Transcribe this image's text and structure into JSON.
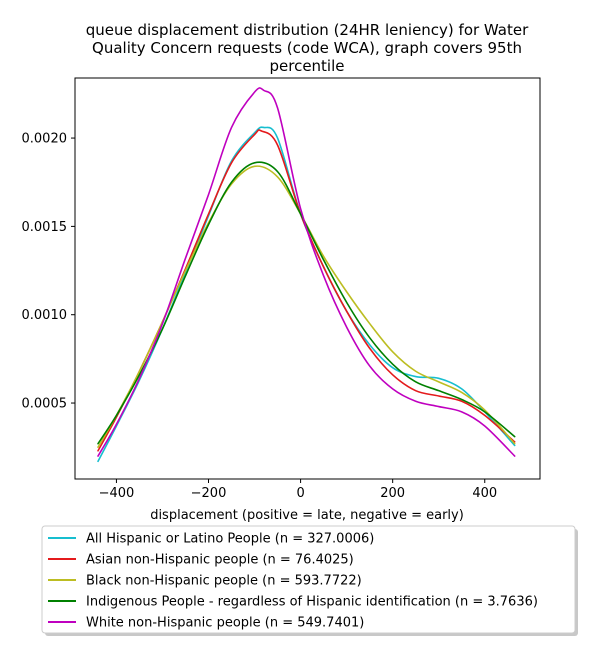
{
  "chart_data": {
    "type": "line",
    "title_lines": [
      "queue displacement distribution (24HR leniency) for Water",
      "Quality Concern  requests (code WCA), graph covers 95th",
      "percentile"
    ],
    "xlabel": "displacement (positive = late, negative = early)",
    "ylabel": "",
    "xlim": [
      -490,
      520
    ],
    "ylim": [
      7e-05,
      0.00234
    ],
    "x_ticks": [
      -400,
      -200,
      0,
      200,
      400
    ],
    "x_tick_labels": [
      "−400",
      "−200",
      "0",
      "200",
      "400"
    ],
    "y_ticks": [
      0.0005,
      0.001,
      0.0015,
      0.002
    ],
    "y_tick_labels": [
      "0.0005",
      "0.0010",
      "0.0015",
      "0.0020"
    ],
    "grid": false,
    "legend_placement": "below plot",
    "series": [
      {
        "name": "All Hispanic or Latino People (n = 327.0006)",
        "color": "#17becf",
        "x": [
          -440,
          -400,
          -350,
          -300,
          -250,
          -200,
          -150,
          -100,
          -80,
          -50,
          0,
          50,
          100,
          150,
          200,
          250,
          300,
          350,
          400,
          465
        ],
        "y": [
          0.00017,
          0.00037,
          0.00063,
          0.00092,
          0.00124,
          0.00156,
          0.00187,
          0.00203,
          0.00206,
          0.002,
          0.00157,
          0.00127,
          0.00102,
          0.00083,
          0.0007,
          0.00065,
          0.00064,
          0.00058,
          0.00045,
          0.00026
        ]
      },
      {
        "name": "Asian non-Hispanic people (n = 76.4025)",
        "color": "#e41a1c",
        "x": [
          -440,
          -400,
          -350,
          -300,
          -250,
          -200,
          -150,
          -100,
          -85,
          -50,
          0,
          50,
          100,
          150,
          200,
          250,
          300,
          350,
          400,
          465
        ],
        "y": [
          0.00023,
          0.00042,
          0.00068,
          0.00096,
          0.00126,
          0.00157,
          0.00186,
          0.00202,
          0.00204,
          0.00196,
          0.00157,
          0.00127,
          0.00102,
          0.00081,
          0.00066,
          0.00057,
          0.00054,
          0.00051,
          0.00043,
          0.00028
        ]
      },
      {
        "name": "Black non-Hispanic people (n = 593.7722)",
        "color": "#bcbd22",
        "x": [
          -440,
          -400,
          -350,
          -300,
          -250,
          -200,
          -150,
          -100,
          -50,
          0,
          50,
          100,
          150,
          200,
          250,
          300,
          350,
          400,
          465
        ],
        "y": [
          0.00025,
          0.00043,
          0.00068,
          0.00096,
          0.00125,
          0.00152,
          0.00174,
          0.00184,
          0.00178,
          0.00157,
          0.00133,
          0.00113,
          0.00095,
          0.00079,
          0.00068,
          0.00062,
          0.00056,
          0.00046,
          0.00027
        ]
      },
      {
        "name": "Indigenous People - regardless of Hispanic identification (n = 3.7636)",
        "color": "#008000",
        "x": [
          -440,
          -400,
          -350,
          -300,
          -250,
          -200,
          -150,
          -100,
          -50,
          0,
          50,
          100,
          150,
          200,
          250,
          300,
          350,
          400,
          465
        ],
        "y": [
          0.00027,
          0.00043,
          0.00066,
          0.00092,
          0.00122,
          0.00151,
          0.00175,
          0.00186,
          0.00181,
          0.00157,
          0.00131,
          0.00107,
          0.00087,
          0.00072,
          0.00062,
          0.00057,
          0.00052,
          0.00045,
          0.00031
        ]
      },
      {
        "name": "White non-Hispanic people (n = 549.7401)",
        "color": "#bf00bf",
        "x": [
          -440,
          -400,
          -350,
          -300,
          -250,
          -200,
          -150,
          -100,
          -80,
          -50,
          0,
          50,
          100,
          150,
          200,
          250,
          300,
          350,
          400,
          465
        ],
        "y": [
          0.0002,
          0.00038,
          0.00064,
          0.00095,
          0.00132,
          0.00168,
          0.00206,
          0.00226,
          0.00227,
          0.00217,
          0.0016,
          0.00122,
          0.00093,
          0.00071,
          0.00058,
          0.00051,
          0.00048,
          0.00045,
          0.00037,
          0.0002
        ]
      }
    ]
  }
}
